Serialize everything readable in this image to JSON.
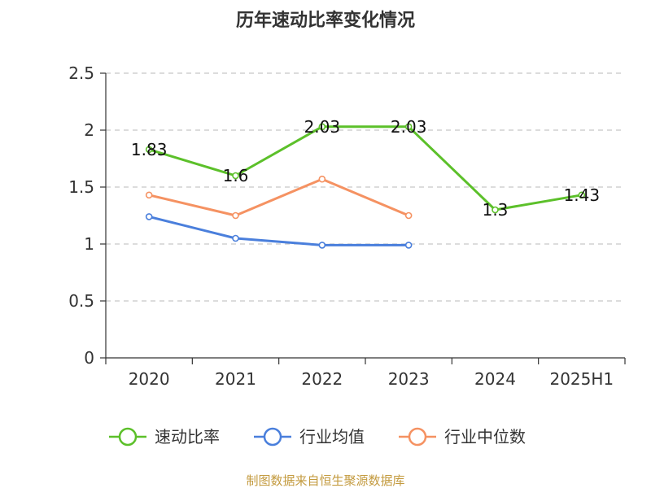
{
  "chart_data": {
    "type": "line",
    "title": "历年速动比率变化情况",
    "categories": [
      "2020",
      "2021",
      "2022",
      "2023",
      "2024",
      "2025H1"
    ],
    "ylim": [
      0,
      2.5
    ],
    "yticks": [
      "0",
      "0.5",
      "1",
      "1.5",
      "2",
      "2.5"
    ],
    "grid": true,
    "legend_position": "bottom",
    "series": [
      {
        "name": "速动比率",
        "color": "#5cc02a",
        "show_labels": true,
        "values": [
          1.83,
          1.6,
          2.03,
          2.03,
          1.3,
          1.43
        ],
        "labels": [
          "1.83",
          "1.6",
          "2.03",
          "2.03",
          "1.3",
          "1.43"
        ]
      },
      {
        "name": "行业均值",
        "color": "#4a7fdc",
        "show_labels": false,
        "values": [
          1.24,
          1.05,
          0.99,
          0.99,
          null,
          null
        ]
      },
      {
        "name": "行业中位数",
        "color": "#f59262",
        "show_labels": false,
        "values": [
          1.43,
          1.25,
          1.57,
          1.25,
          null,
          null
        ]
      }
    ]
  },
  "source": "制图数据来自恒生聚源数据库"
}
